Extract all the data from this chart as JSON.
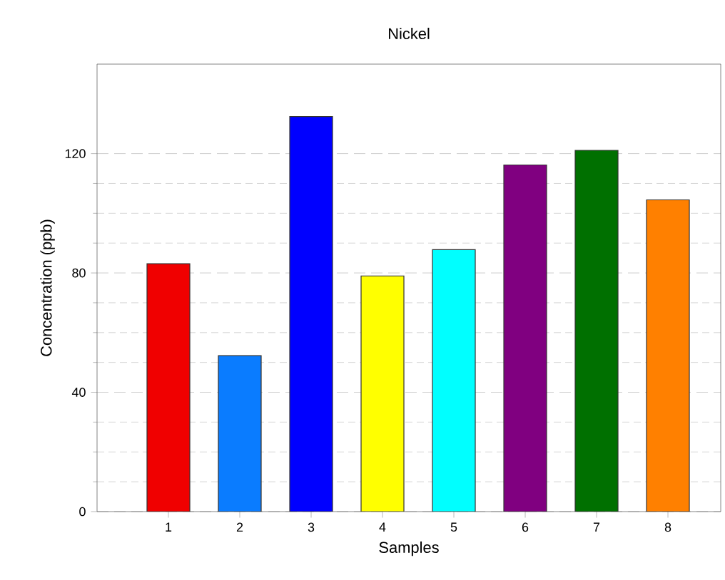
{
  "chart_data": {
    "type": "bar",
    "title": "Nickel",
    "xlabel": "Samples",
    "ylabel": "Concentration (ppb)",
    "categories": [
      "1",
      "2",
      "3",
      "4",
      "5",
      "6",
      "7",
      "8"
    ],
    "values": [
      83.1,
      52.3,
      132.4,
      79.0,
      87.8,
      116.2,
      121.1,
      104.5
    ],
    "colors": [
      "#f00000",
      "#0a7cff",
      "#0000ff",
      "#ffff00",
      "#00ffff",
      "#800080",
      "#007000",
      "#ff8000"
    ],
    "ylim": [
      0,
      150
    ],
    "yticks": [
      0,
      40,
      80,
      120
    ],
    "grid": "y"
  }
}
